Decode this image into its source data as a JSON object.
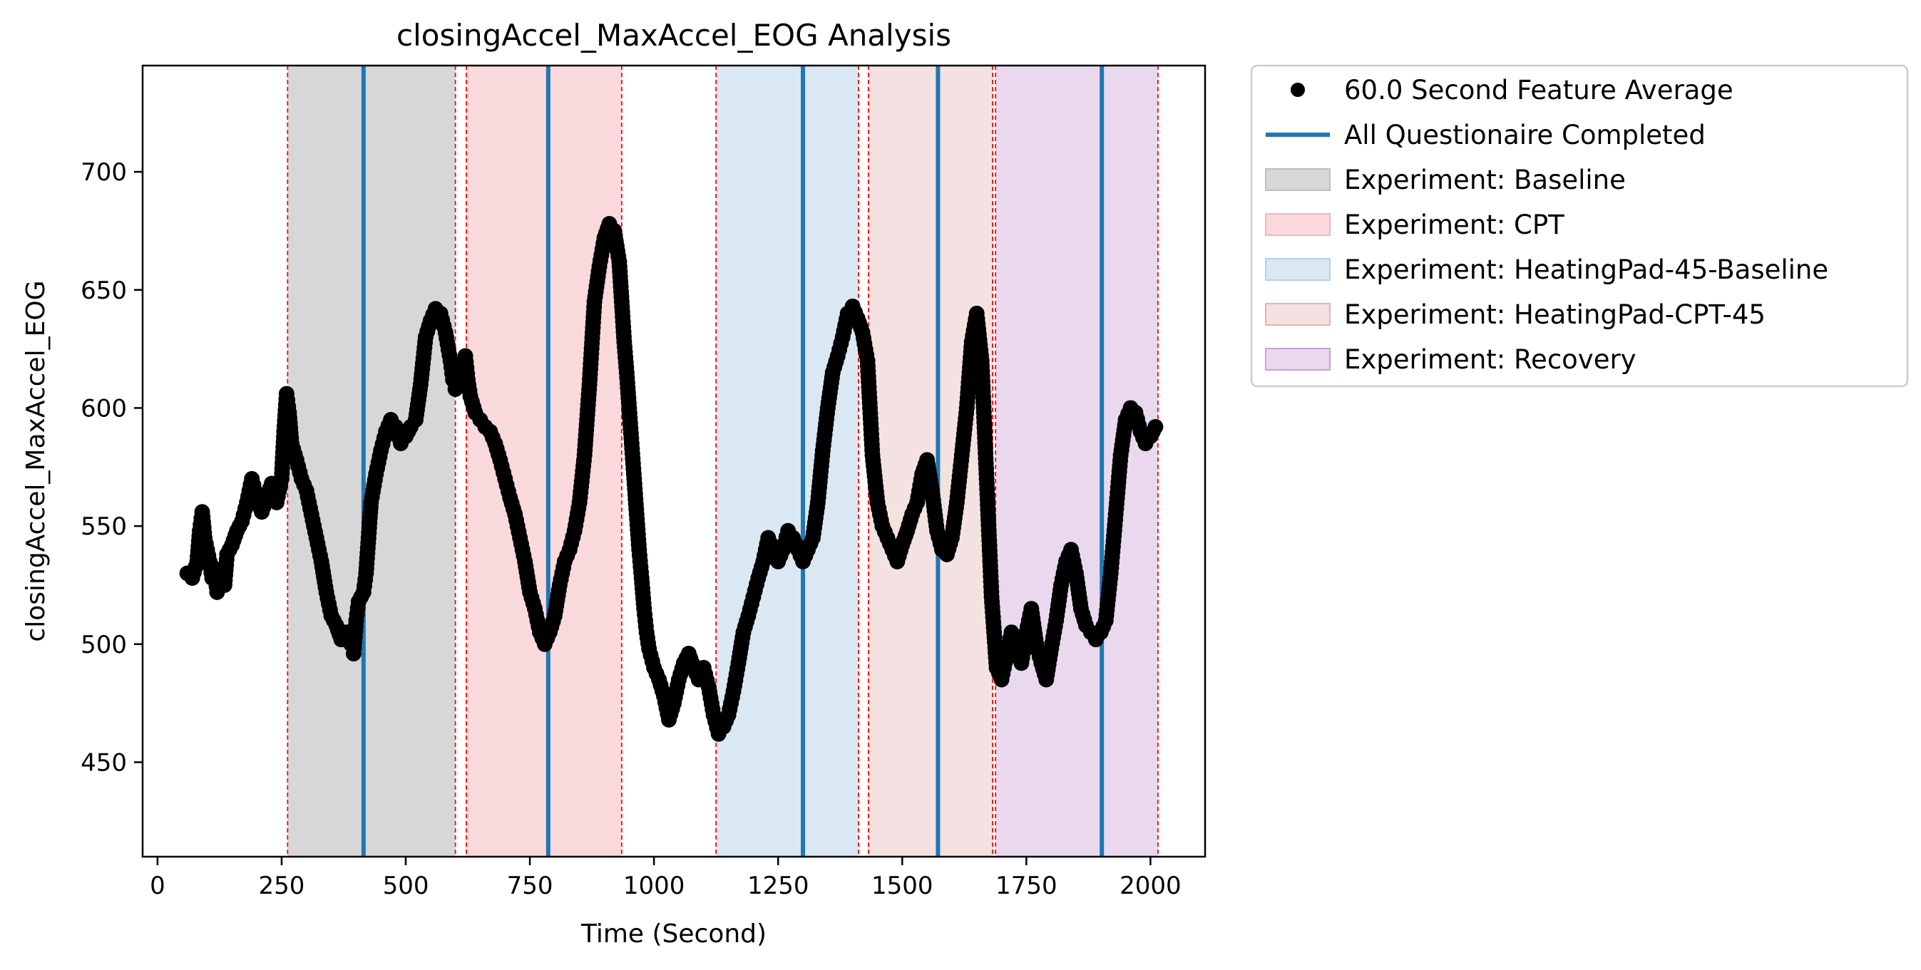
{
  "chart_data": {
    "type": "scatter",
    "title": "closingAccel_MaxAccel_EOG Analysis",
    "xlabel": "Time (Second)",
    "ylabel": "closingAccel_MaxAccel_EOG",
    "xlim": [
      -30,
      2110
    ],
    "ylim": [
      410,
      745
    ],
    "xticks": [
      0,
      250,
      500,
      750,
      1000,
      1250,
      1500,
      1750,
      2000
    ],
    "yticks": [
      450,
      500,
      550,
      600,
      650,
      700
    ],
    "grid": false,
    "legend_placement": "outside-upper-right",
    "series": [
      {
        "name": "60.0 Second Feature Average",
        "marker": "circle",
        "color": "#000000",
        "points": [
          [
            60,
            530
          ],
          [
            70,
            528
          ],
          [
            80,
            535
          ],
          [
            85,
            548
          ],
          [
            90,
            556
          ],
          [
            95,
            545
          ],
          [
            100,
            540
          ],
          [
            105,
            535
          ],
          [
            110,
            528
          ],
          [
            115,
            532
          ],
          [
            120,
            522
          ],
          [
            125,
            530
          ],
          [
            130,
            528
          ],
          [
            135,
            525
          ],
          [
            140,
            538
          ],
          [
            150,
            542
          ],
          [
            160,
            548
          ],
          [
            170,
            552
          ],
          [
            180,
            560
          ],
          [
            190,
            570
          ],
          [
            200,
            562
          ],
          [
            210,
            556
          ],
          [
            220,
            562
          ],
          [
            230,
            568
          ],
          [
            240,
            560
          ],
          [
            250,
            570
          ],
          [
            255,
            590
          ],
          [
            260,
            606
          ],
          [
            265,
            598
          ],
          [
            270,
            585
          ],
          [
            280,
            578
          ],
          [
            290,
            570
          ],
          [
            300,
            565
          ],
          [
            310,
            555
          ],
          [
            320,
            545
          ],
          [
            330,
            535
          ],
          [
            340,
            522
          ],
          [
            350,
            512
          ],
          [
            360,
            508
          ],
          [
            370,
            502
          ],
          [
            380,
            505
          ],
          [
            390,
            500
          ],
          [
            395,
            496
          ],
          [
            400,
            510
          ],
          [
            405,
            518
          ],
          [
            410,
            520
          ],
          [
            415,
            522
          ],
          [
            420,
            530
          ],
          [
            425,
            545
          ],
          [
            430,
            560
          ],
          [
            440,
            572
          ],
          [
            450,
            582
          ],
          [
            460,
            590
          ],
          [
            470,
            595
          ],
          [
            480,
            592
          ],
          [
            490,
            585
          ],
          [
            500,
            588
          ],
          [
            510,
            592
          ],
          [
            520,
            595
          ],
          [
            530,
            610
          ],
          [
            540,
            630
          ],
          [
            550,
            637
          ],
          [
            560,
            642
          ],
          [
            570,
            640
          ],
          [
            580,
            632
          ],
          [
            590,
            620
          ],
          [
            595,
            612
          ],
          [
            600,
            608
          ],
          [
            610,
            615
          ],
          [
            620,
            622
          ],
          [
            625,
            612
          ],
          [
            630,
            605
          ],
          [
            640,
            598
          ],
          [
            650,
            595
          ],
          [
            660,
            592
          ],
          [
            670,
            590
          ],
          [
            680,
            585
          ],
          [
            690,
            578
          ],
          [
            700,
            570
          ],
          [
            710,
            562
          ],
          [
            720,
            555
          ],
          [
            730,
            545
          ],
          [
            740,
            535
          ],
          [
            750,
            522
          ],
          [
            760,
            515
          ],
          [
            770,
            505
          ],
          [
            780,
            500
          ],
          [
            790,
            505
          ],
          [
            800,
            512
          ],
          [
            810,
            525
          ],
          [
            820,
            535
          ],
          [
            830,
            540
          ],
          [
            840,
            548
          ],
          [
            850,
            560
          ],
          [
            860,
            580
          ],
          [
            870,
            610
          ],
          [
            880,
            645
          ],
          [
            890,
            660
          ],
          [
            900,
            672
          ],
          [
            910,
            678
          ],
          [
            920,
            675
          ],
          [
            930,
            662
          ],
          [
            935,
            645
          ],
          [
            940,
            628
          ],
          [
            945,
            615
          ],
          [
            950,
            600
          ],
          [
            955,
            585
          ],
          [
            960,
            570
          ],
          [
            965,
            555
          ],
          [
            970,
            540
          ],
          [
            975,
            528
          ],
          [
            980,
            515
          ],
          [
            985,
            505
          ],
          [
            990,
            498
          ],
          [
            1000,
            490
          ],
          [
            1010,
            485
          ],
          [
            1020,
            478
          ],
          [
            1030,
            468
          ],
          [
            1040,
            475
          ],
          [
            1050,
            485
          ],
          [
            1060,
            492
          ],
          [
            1070,
            496
          ],
          [
            1080,
            490
          ],
          [
            1090,
            485
          ],
          [
            1100,
            490
          ],
          [
            1110,
            482
          ],
          [
            1120,
            470
          ],
          [
            1130,
            462
          ],
          [
            1140,
            465
          ],
          [
            1150,
            470
          ],
          [
            1160,
            480
          ],
          [
            1170,
            492
          ],
          [
            1180,
            505
          ],
          [
            1190,
            512
          ],
          [
            1200,
            520
          ],
          [
            1210,
            528
          ],
          [
            1220,
            535
          ],
          [
            1230,
            545
          ],
          [
            1240,
            540
          ],
          [
            1250,
            535
          ],
          [
            1260,
            540
          ],
          [
            1270,
            548
          ],
          [
            1280,
            545
          ],
          [
            1290,
            540
          ],
          [
            1300,
            535
          ],
          [
            1310,
            540
          ],
          [
            1320,
            545
          ],
          [
            1330,
            560
          ],
          [
            1340,
            582
          ],
          [
            1350,
            600
          ],
          [
            1360,
            615
          ],
          [
            1370,
            622
          ],
          [
            1380,
            630
          ],
          [
            1390,
            640
          ],
          [
            1400,
            643
          ],
          [
            1410,
            638
          ],
          [
            1420,
            632
          ],
          [
            1430,
            620
          ],
          [
            1440,
            580
          ],
          [
            1450,
            560
          ],
          [
            1460,
            550
          ],
          [
            1470,
            545
          ],
          [
            1480,
            540
          ],
          [
            1490,
            535
          ],
          [
            1500,
            542
          ],
          [
            1510,
            548
          ],
          [
            1520,
            555
          ],
          [
            1530,
            560
          ],
          [
            1540,
            572
          ],
          [
            1550,
            578
          ],
          [
            1560,
            565
          ],
          [
            1570,
            548
          ],
          [
            1580,
            540
          ],
          [
            1590,
            538
          ],
          [
            1600,
            545
          ],
          [
            1610,
            560
          ],
          [
            1620,
            580
          ],
          [
            1630,
            600
          ],
          [
            1640,
            628
          ],
          [
            1650,
            640
          ],
          [
            1660,
            620
          ],
          [
            1670,
            570
          ],
          [
            1680,
            520
          ],
          [
            1690,
            490
          ],
          [
            1700,
            485
          ],
          [
            1710,
            495
          ],
          [
            1720,
            505
          ],
          [
            1730,
            495
          ],
          [
            1740,
            492
          ],
          [
            1750,
            505
          ],
          [
            1760,
            515
          ],
          [
            1770,
            500
          ],
          [
            1780,
            492
          ],
          [
            1790,
            485
          ],
          [
            1800,
            498
          ],
          [
            1810,
            510
          ],
          [
            1820,
            525
          ],
          [
            1830,
            535
          ],
          [
            1840,
            540
          ],
          [
            1850,
            530
          ],
          [
            1860,
            515
          ],
          [
            1870,
            508
          ],
          [
            1880,
            505
          ],
          [
            1890,
            502
          ],
          [
            1900,
            505
          ],
          [
            1910,
            510
          ],
          [
            1920,
            530
          ],
          [
            1930,
            555
          ],
          [
            1940,
            580
          ],
          [
            1950,
            595
          ],
          [
            1960,
            600
          ],
          [
            1970,
            598
          ],
          [
            1980,
            590
          ],
          [
            1990,
            585
          ],
          [
            2000,
            588
          ],
          [
            2010,
            592
          ]
        ]
      }
    ],
    "questionnaire_lines": {
      "name": "All Questionaire Completed",
      "color": "#1f77b4",
      "x": [
        415,
        787,
        1300,
        1572,
        1902
      ]
    },
    "experiment_regions": [
      {
        "name": "Experiment: Baseline",
        "color": "#bdbdbd",
        "opacity": 0.6,
        "spans": [
          [
            262,
            600
          ]
        ]
      },
      {
        "name": "Experiment: CPT",
        "color": "#f5b4bb",
        "opacity": 0.5,
        "spans": [
          [
            622,
            935
          ]
        ]
      },
      {
        "name": "Experiment: HeatingPad-45-Baseline",
        "color": "#b5d1e8",
        "opacity": 0.5,
        "spans": [
          [
            1125,
            1412
          ]
        ]
      },
      {
        "name": "Experiment: HeatingPad-CPT-45",
        "color": "#e3b5b4",
        "opacity": 0.4,
        "spans": [
          [
            1432,
            1682
          ]
        ]
      },
      {
        "name": "Experiment: Recovery",
        "color": "#caa0d4",
        "opacity": 0.4,
        "spans": [
          [
            1688,
            2015
          ]
        ]
      }
    ],
    "boundary_lines": {
      "color": "#ff0000",
      "x": [
        262,
        600,
        622,
        935,
        1125,
        1412,
        1432,
        1682,
        1688,
        2015
      ]
    }
  }
}
